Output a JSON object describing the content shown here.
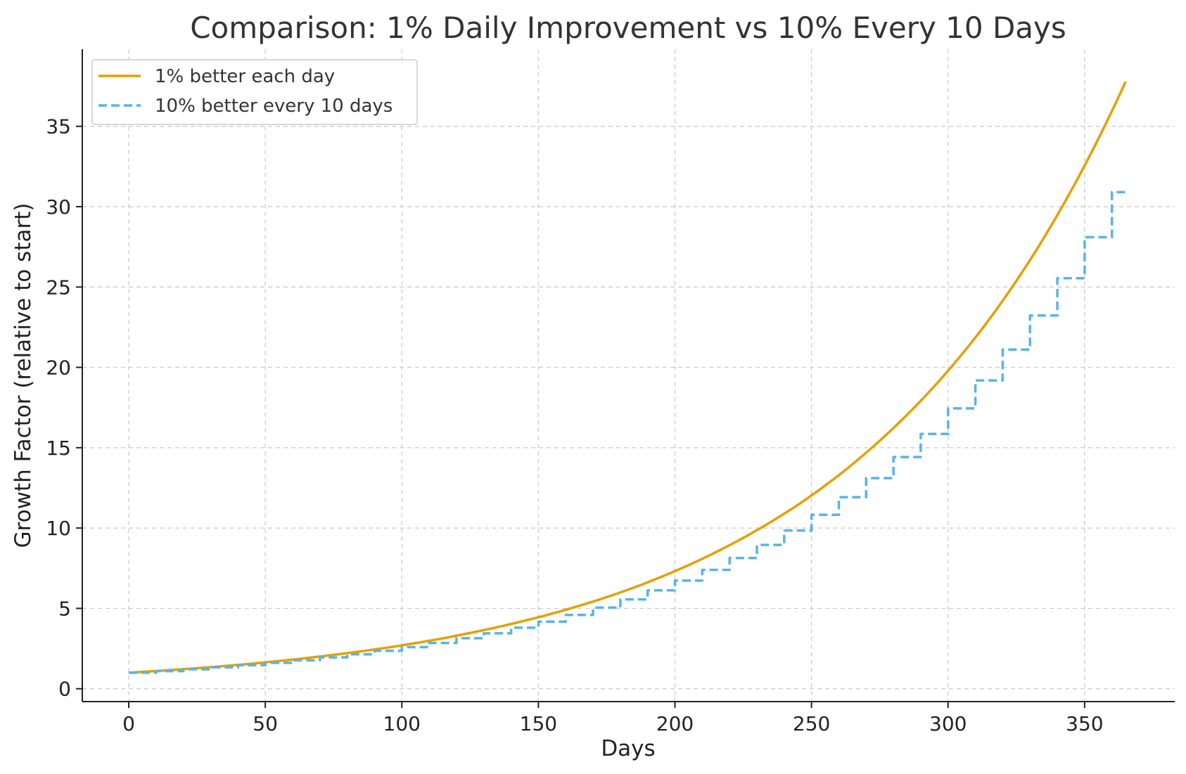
{
  "chart_data": {
    "type": "line",
    "title": "Comparison: 1% Daily Improvement vs 10% Every 10 Days",
    "xlabel": "Days",
    "ylabel": "Growth Factor (relative to start)",
    "xlim": [
      -17,
      383
    ],
    "ylim": [
      -0.8,
      39.8
    ],
    "xticks": [
      0,
      50,
      100,
      150,
      200,
      250,
      300,
      350
    ],
    "yticks": [
      0,
      5,
      10,
      15,
      20,
      25,
      30,
      35
    ],
    "grid": true,
    "legend_position": "top-left",
    "series": [
      {
        "name": "1% better each day",
        "color": "#E69F00",
        "style": "solid",
        "x": [
          0,
          25,
          50,
          75,
          100,
          125,
          150,
          175,
          200,
          225,
          250,
          275,
          300,
          325,
          350,
          365
        ],
        "values": [
          1.0,
          1.28,
          1.64,
          2.11,
          2.7,
          3.47,
          4.45,
          5.7,
          7.32,
          9.39,
          12.03,
          15.44,
          19.79,
          25.38,
          32.56,
          37.78
        ]
      },
      {
        "name": "10% better every 10 days",
        "color": "#56B4E9",
        "style": "dashed",
        "x": [
          0,
          10,
          20,
          30,
          40,
          50,
          60,
          70,
          80,
          90,
          100,
          110,
          120,
          130,
          140,
          150,
          160,
          170,
          180,
          190,
          200,
          210,
          220,
          230,
          240,
          250,
          260,
          270,
          280,
          290,
          300,
          310,
          320,
          330,
          340,
          350,
          360,
          365
        ],
        "values": [
          1.0,
          1.1,
          1.21,
          1.33,
          1.46,
          1.61,
          1.77,
          1.95,
          2.14,
          2.36,
          2.59,
          2.85,
          3.14,
          3.45,
          3.8,
          4.18,
          4.59,
          5.05,
          5.56,
          6.12,
          6.73,
          7.4,
          8.14,
          8.95,
          9.85,
          10.83,
          11.92,
          13.11,
          14.42,
          15.86,
          17.45,
          19.19,
          21.11,
          23.23,
          25.55,
          28.1,
          30.91,
          30.91
        ],
        "step": "post"
      }
    ]
  }
}
